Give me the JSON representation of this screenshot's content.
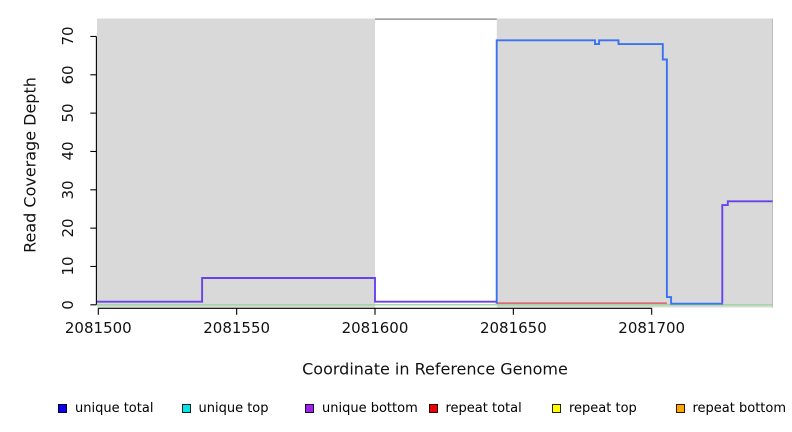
{
  "figure": {
    "x_axis": {
      "label": "Coordinate in Reference Genome",
      "ticks": [
        {
          "value": 2081500,
          "label": "2081500"
        },
        {
          "value": 2081550,
          "label": "2081550"
        },
        {
          "value": 2081600,
          "label": "2081600"
        },
        {
          "value": 2081650,
          "label": "2081650"
        },
        {
          "value": 2081700,
          "label": "2081700"
        }
      ]
    },
    "y_axis": {
      "label": "Read Coverage Depth",
      "ticks": [
        {
          "value": 0,
          "label": "0"
        },
        {
          "value": 10,
          "label": "10"
        },
        {
          "value": 20,
          "label": "20"
        },
        {
          "value": 30,
          "label": "30"
        },
        {
          "value": 40,
          "label": "40"
        },
        {
          "value": 50,
          "label": "50"
        },
        {
          "value": 60,
          "label": "60"
        },
        {
          "value": 70,
          "label": "70"
        }
      ]
    }
  },
  "legend": {
    "items": [
      {
        "name": "unique-total",
        "label": "unique total",
        "color": "#0d00f0"
      },
      {
        "name": "unique-top",
        "label": "unique top",
        "color": "#00e5e5"
      },
      {
        "name": "unique-bottom",
        "label": "unique bottom",
        "color": "#a020f0"
      },
      {
        "name": "repeat-total",
        "label": "repeat total",
        "color": "#ee0000"
      },
      {
        "name": "repeat-top",
        "label": "repeat top",
        "color": "#ffff00"
      },
      {
        "name": "repeat-bottom",
        "label": "repeat bottom",
        "color": "#ffa500"
      }
    ]
  },
  "chart_data": {
    "type": "line",
    "title": "",
    "xlabel": "Coordinate in Reference Genome",
    "ylabel": "Read Coverage Depth",
    "x_range": [
      2081499.5,
      2081743.7
    ],
    "y_range": [
      0,
      70
    ],
    "grid": false,
    "plot_background_color": "#d9d9d9",
    "white_gap_region": {
      "from": 2081600,
      "to": 2081644
    },
    "series": [
      {
        "name": "zero-baseline-overlap",
        "color": "#98d898",
        "width": 1.3,
        "segments": [
          [
            [
              2081499.5,
              0
            ],
            [
              2081743.7,
              0
            ]
          ]
        ]
      },
      {
        "name": "repeat-total",
        "color": "#dd4455",
        "width": 1.3,
        "segments": [
          [
            [
              2081644,
              0.45
            ],
            [
              2081705.5,
              0.45
            ]
          ]
        ]
      },
      {
        "name": "unique-total",
        "color": "#3a72f2",
        "width": 1.9,
        "segments": [
          [
            [
              2081644,
              0.3
            ],
            [
              2081644,
              69
            ],
            [
              2081679.5,
              69
            ],
            [
              2081679.5,
              68
            ],
            [
              2081681,
              68
            ],
            [
              2081681,
              69
            ],
            [
              2081688,
              69
            ],
            [
              2081688,
              68
            ],
            [
              2081704,
              68
            ],
            [
              2081704,
              64
            ],
            [
              2081705.5,
              64
            ],
            [
              2081705.5,
              2
            ],
            [
              2081707,
              2
            ],
            [
              2081707,
              0.3
            ],
            [
              2081725.8,
              0.3
            ]
          ]
        ]
      },
      {
        "name": "unique-bottom",
        "color": "#6a42e8",
        "width": 1.9,
        "segments": [
          [
            [
              2081499.5,
              0.8
            ],
            [
              2081537.5,
              0.8
            ],
            [
              2081537.5,
              7
            ],
            [
              2081600,
              7
            ],
            [
              2081600,
              0.8
            ],
            [
              2081644,
              0.8
            ]
          ],
          [
            [
              2081725.5,
              0.5
            ],
            [
              2081725.5,
              26
            ],
            [
              2081727.5,
              26
            ],
            [
              2081727.5,
              27
            ],
            [
              2081743.7,
              27
            ]
          ]
        ]
      }
    ]
  }
}
